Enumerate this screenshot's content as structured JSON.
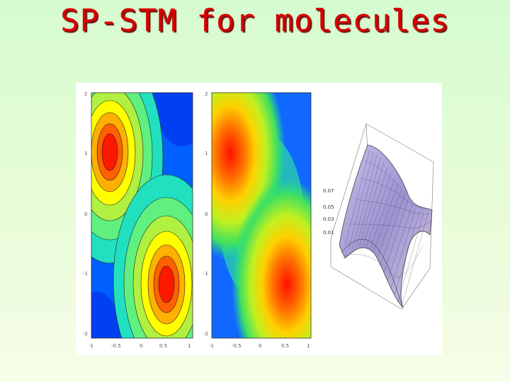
{
  "slide": {
    "title": "SP-STM for molecules"
  },
  "figure": {
    "contour_panel": {
      "colormap": [
        "#0040ff",
        "#00b0ff",
        "#20e0c0",
        "#a0f040",
        "#ffff00",
        "#ff9000",
        "#ff2000"
      ],
      "y_tick_labels": [
        "2",
        "1",
        "0",
        "-1",
        "-2"
      ],
      "x_tick_labels": [
        "-1",
        "-0.5",
        "0",
        "0.5",
        "1"
      ]
    },
    "density_panel": {
      "y_tick_labels": [
        "2",
        "1",
        "0",
        "-1",
        "-2"
      ],
      "x_tick_labels": [
        "-1",
        "-0.5",
        "0",
        "0.5",
        "1"
      ]
    },
    "surface_panel": {
      "z_tick_labels": [
        "0.07",
        "0.05",
        "0.03",
        "0.01"
      ],
      "surface_color": "#a8a0d8"
    }
  }
}
